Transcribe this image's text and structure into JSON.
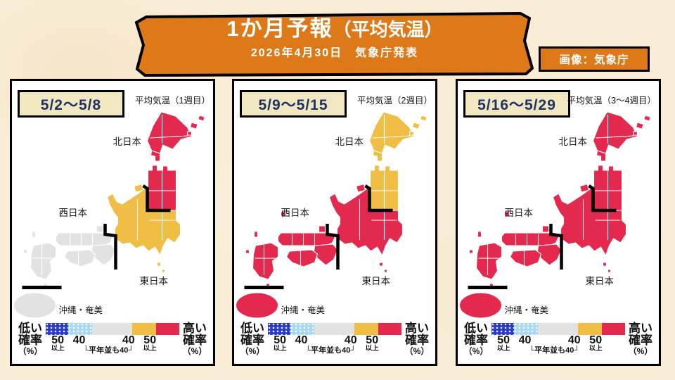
{
  "header": {
    "title_main": "1か月予報",
    "title_paren": "（平均気温）",
    "subtitle": "2026年4月30日　気象庁発表",
    "credit": "画像：気象庁"
  },
  "colors": {
    "page_bg": "#F9EDD7",
    "banner_orange": "#DD7919",
    "panel_bg": "#FFFFFF",
    "date_box_bg": "#F1E7C1",
    "date_text_navy": "#1F3266",
    "red": "#E3294E",
    "yellow": "#F1BE45",
    "gray": "#E2E2E2"
  },
  "panels": [
    {
      "date_label": "5/2～5/8",
      "map_title": "平均気温（1週目）",
      "labels": {
        "north": "北日本",
        "west": "西日本",
        "east": "東日本",
        "okinawa": "沖縄・奄美"
      },
      "region_colors": {
        "north": "#E3294E",
        "east": "#F1BE45",
        "west": "#E2E2E2",
        "okinawa": "#E2E2E2"
      }
    },
    {
      "date_label": "5/9～5/15",
      "map_title": "平均気温（2週目）",
      "labels": {
        "north": "北日本",
        "west": "西日本",
        "east": "東日本",
        "okinawa": "沖縄・奄美"
      },
      "region_colors": {
        "north": "#F1BE45",
        "east": "#E3294E",
        "west": "#E3294E",
        "okinawa": "#E3294E"
      }
    },
    {
      "date_label": "5/16～5/29",
      "map_title": "平均気温（3～4週目）",
      "labels": {
        "north": "北日本",
        "west": "西日本",
        "east": "東日本",
        "okinawa": "沖縄・奄美"
      },
      "region_colors": {
        "north": "#E3294E",
        "east": "#E3294E",
        "west": "#E3294E",
        "okinawa": "#E3294E"
      }
    }
  ],
  "legend": {
    "low": [
      "低い",
      "確率",
      "（%）"
    ],
    "high": [
      "高い",
      "確率",
      "（%）"
    ],
    "seg_colors": [
      "#2A3BC8",
      "#A8D9F2",
      "#E2E2E2",
      "#F1BE45",
      "#E3294E"
    ],
    "num_50_left": "50",
    "num_50_left_sub": "以上",
    "num_40_left": "40",
    "center_note": "└平年並も40┘",
    "num_40_right": "40",
    "num_50_right": "50",
    "num_50_right_sub": "以上"
  }
}
